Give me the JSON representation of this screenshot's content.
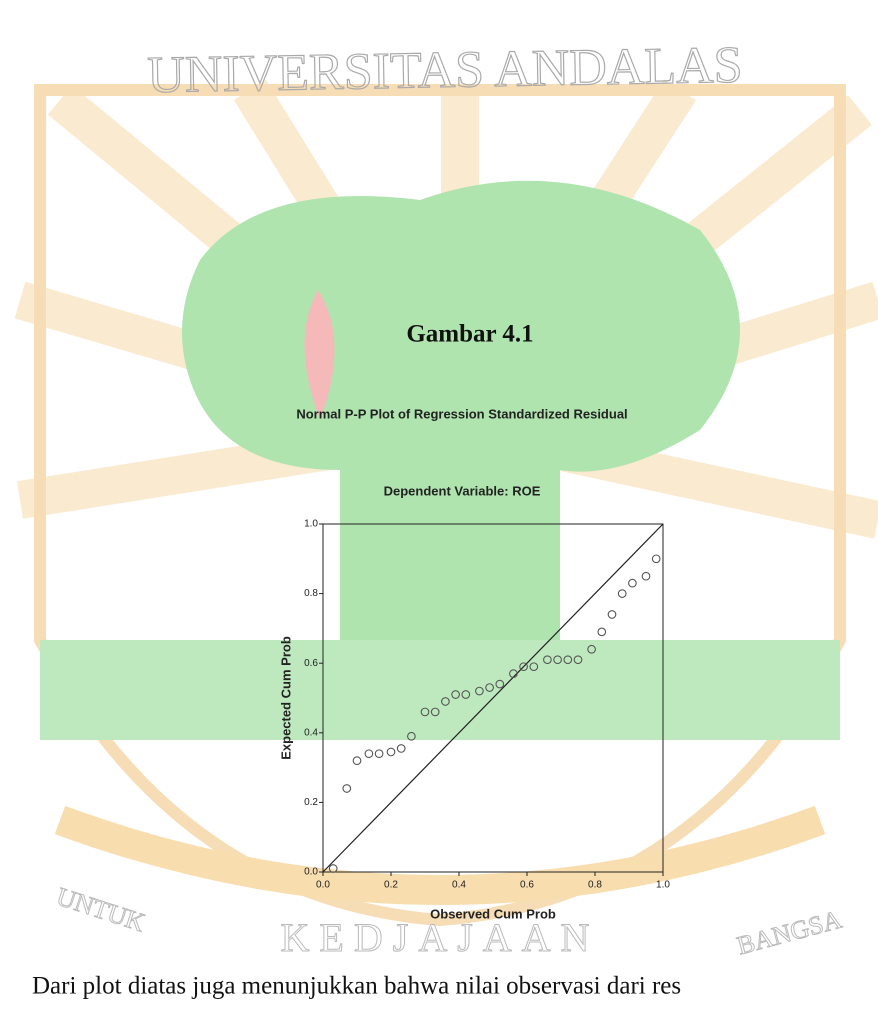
{
  "watermark": {
    "top": "UNIVERSITAS ANDALAS",
    "bottom_left": "UNTUK",
    "bottom_center": "KEDJAJAAN",
    "bottom_right": "BANGSA"
  },
  "heading": "Gambar 4.1",
  "chart_data": {
    "type": "scatter",
    "title": "Normal P-P Plot of Regression Standardized Residual",
    "subtitle": "Dependent Variable: ROE",
    "x_label": "Observed Cum Prob",
    "y_label": "Expected Cum Prob",
    "x": [
      0.03,
      0.07,
      0.1,
      0.135,
      0.165,
      0.2,
      0.23,
      0.26,
      0.3,
      0.33,
      0.36,
      0.39,
      0.42,
      0.46,
      0.49,
      0.52,
      0.56,
      0.59,
      0.62,
      0.66,
      0.69,
      0.72,
      0.75,
      0.79,
      0.82,
      0.85,
      0.88,
      0.91,
      0.95,
      0.98
    ],
    "values": [
      0.01,
      0.24,
      0.32,
      0.34,
      0.34,
      0.345,
      0.355,
      0.39,
      0.46,
      0.46,
      0.49,
      0.51,
      0.51,
      0.52,
      0.53,
      0.54,
      0.57,
      0.59,
      0.59,
      0.61,
      0.61,
      0.61,
      0.61,
      0.64,
      0.69,
      0.74,
      0.8,
      0.83,
      0.85,
      0.9
    ],
    "color": "#555555",
    "xlim": [
      0,
      1
    ],
    "ylim": [
      0,
      1
    ],
    "xticks": [
      {
        "value": 0,
        "label": "0.0"
      },
      {
        "value": 0.2,
        "label": "0.2"
      },
      {
        "value": 0.4,
        "label": "0.4"
      },
      {
        "value": 0.6,
        "label": "0.6"
      },
      {
        "value": 0.8,
        "label": "0.8"
      },
      {
        "value": 1,
        "label": "1.0"
      }
    ],
    "yticks": [
      {
        "value": 0,
        "label": "0.0"
      },
      {
        "value": 0.2,
        "label": "0.2"
      },
      {
        "value": 0.4,
        "label": "0.4"
      },
      {
        "value": 0.6,
        "label": "0.6"
      },
      {
        "value": 0.8,
        "label": "0.8"
      },
      {
        "value": 1,
        "label": "1.0"
      }
    ],
    "reference_line": true
  },
  "body_text": "Dari plot diatas juga menunjukkan bahwa nilai observasi dari res"
}
